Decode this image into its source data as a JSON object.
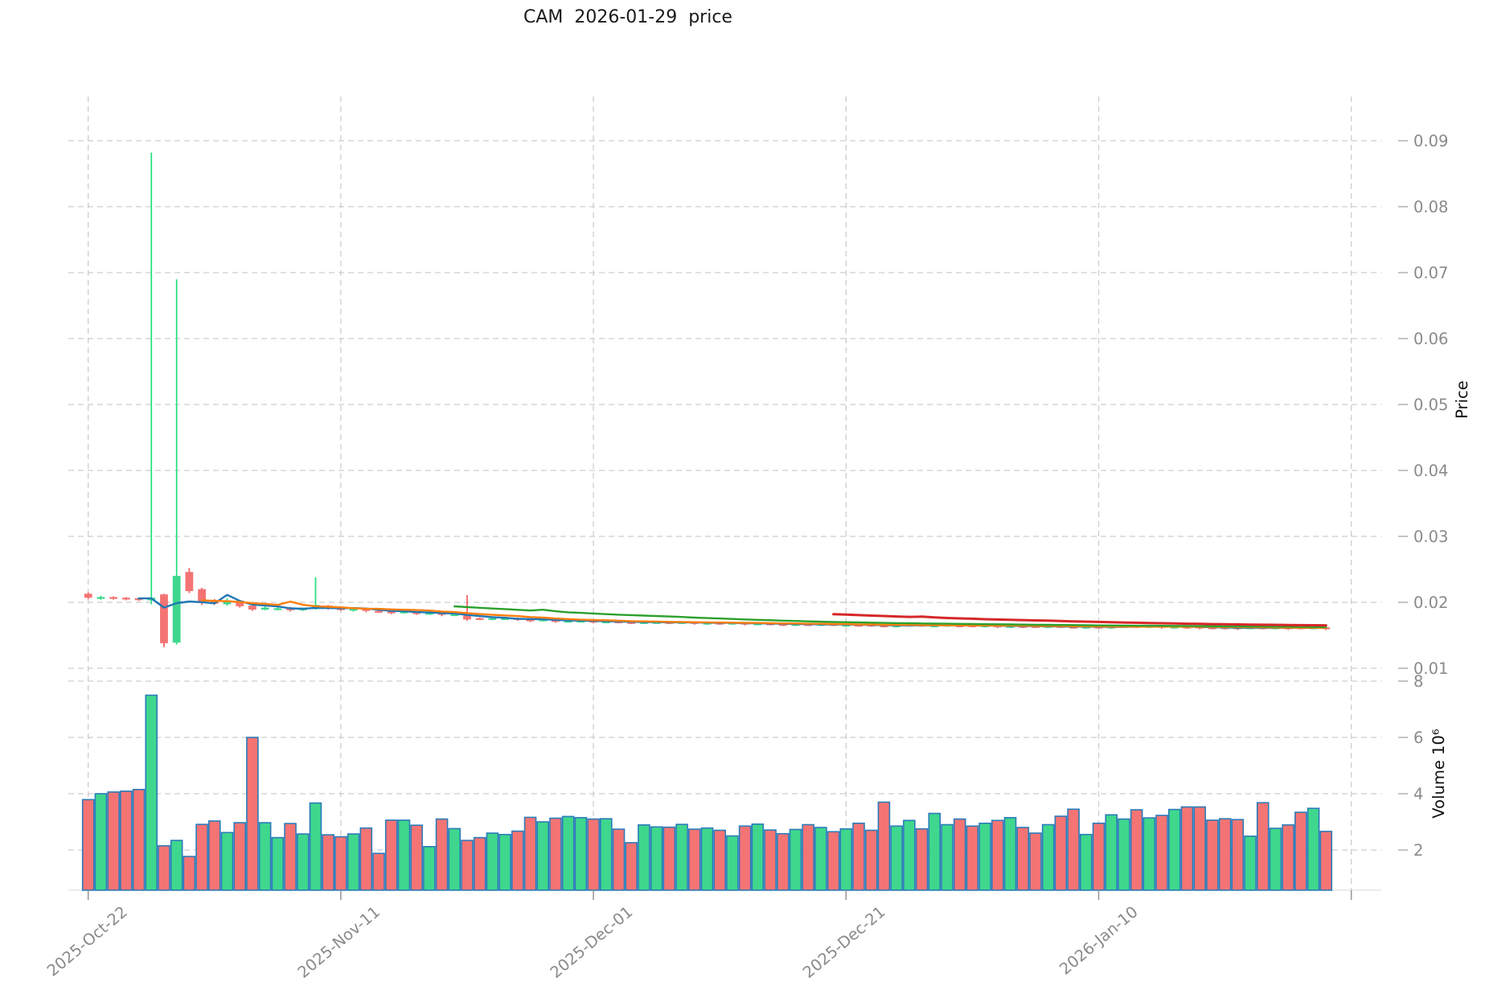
{
  "title": "CAM  2026-01-29  price",
  "colors": {
    "up_body": "#3ed78d",
    "up_wick": "#22df7c",
    "down_body": "#f47474",
    "down_wick": "#f2615f",
    "volume_edge": "#2b7bba",
    "grid": "#cdcdcd",
    "tick_text": "#8a8a8a",
    "axis_title_text": "#111111",
    "ma_colors": [
      "#1f77b4",
      "#ff7f0e",
      "#2ca02c",
      "#d62728"
    ]
  },
  "chart_data": {
    "type": "candlestick",
    "title": "CAM  2026-01-29  price",
    "legend": "none",
    "grid": "dashed",
    "price_axis": {
      "label": "Price",
      "side": "right",
      "ticks": [
        "0.01",
        "0.02",
        "0.03",
        "0.04",
        "0.05",
        "0.06",
        "0.07",
        "0.08",
        "0.09"
      ],
      "range": [
        0.0095,
        0.0965
      ]
    },
    "volume_axis": {
      "label": "Volume  10⁶",
      "side": "right",
      "ticks": [
        "2",
        "4",
        "6",
        "8"
      ],
      "range": [
        0.57,
        8.3
      ]
    },
    "x_axis": {
      "tick_labels": [
        "2025-Oct-22",
        "2025-Nov-11",
        "2025-Dec-01",
        "2025-Dec-21",
        "2026-Jan-10",
        ""
      ],
      "tick_indices": [
        0,
        20,
        40,
        60,
        80,
        100
      ]
    },
    "moving_average_windows": [
      5,
      10,
      30,
      60
    ],
    "candles_format": [
      "open",
      "high",
      "low",
      "close",
      "volume_millions"
    ],
    "candles": [
      [
        0.0213,
        0.0215,
        0.0205,
        0.0207,
        3.79
      ],
      [
        0.0206,
        0.021,
        0.0204,
        0.0208,
        4.0
      ],
      [
        0.0208,
        0.0209,
        0.0204,
        0.0206,
        4.06
      ],
      [
        0.0207,
        0.0208,
        0.0203,
        0.0205,
        4.09
      ],
      [
        0.0206,
        0.0207,
        0.0202,
        0.0204,
        4.15
      ],
      [
        0.0203,
        0.0882,
        0.0197,
        0.0207,
        7.5
      ],
      [
        0.0212,
        0.0213,
        0.0132,
        0.0138,
        2.15
      ],
      [
        0.0139,
        0.069,
        0.0136,
        0.024,
        2.34
      ],
      [
        0.0246,
        0.0252,
        0.0214,
        0.0217,
        1.77
      ],
      [
        0.022,
        0.0222,
        0.0196,
        0.0199,
        2.91
      ],
      [
        0.0202,
        0.0205,
        0.0196,
        0.0198,
        3.03
      ],
      [
        0.0197,
        0.0206,
        0.0195,
        0.0203,
        2.62
      ],
      [
        0.0202,
        0.0203,
        0.0192,
        0.0194,
        2.97
      ],
      [
        0.0195,
        0.0197,
        0.0187,
        0.0189,
        6.0
      ],
      [
        0.0189,
        0.0194,
        0.0188,
        0.0192,
        2.97
      ],
      [
        0.019,
        0.0193,
        0.0188,
        0.0191,
        2.44
      ],
      [
        0.0192,
        0.0193,
        0.0186,
        0.0188,
        2.94
      ],
      [
        0.0188,
        0.0192,
        0.0187,
        0.0191,
        2.57
      ],
      [
        0.019,
        0.0238,
        0.0189,
        0.0196,
        3.67
      ],
      [
        0.0195,
        0.0196,
        0.0189,
        0.0191,
        2.54
      ],
      [
        0.0191,
        0.0192,
        0.0187,
        0.0189,
        2.47
      ],
      [
        0.0188,
        0.0191,
        0.0186,
        0.019,
        2.57
      ],
      [
        0.019,
        0.0191,
        0.0185,
        0.0187,
        2.78
      ],
      [
        0.0187,
        0.0188,
        0.0184,
        0.0186,
        1.88
      ],
      [
        0.0186,
        0.0187,
        0.0182,
        0.0184,
        3.06
      ],
      [
        0.0184,
        0.0187,
        0.0183,
        0.0186,
        3.06
      ],
      [
        0.0185,
        0.0186,
        0.0181,
        0.0183,
        2.88
      ],
      [
        0.0183,
        0.0185,
        0.0181,
        0.0184,
        2.12
      ],
      [
        0.0184,
        0.0185,
        0.0179,
        0.0181,
        3.1
      ],
      [
        0.018,
        0.0183,
        0.0179,
        0.0182,
        2.76
      ],
      [
        0.018,
        0.0211,
        0.0172,
        0.0174,
        2.34
      ],
      [
        0.0176,
        0.0177,
        0.0173,
        0.0175,
        2.44
      ],
      [
        0.0174,
        0.0177,
        0.0173,
        0.0176,
        2.6
      ],
      [
        0.0175,
        0.0178,
        0.0174,
        0.0176,
        2.55
      ],
      [
        0.0176,
        0.0177,
        0.0172,
        0.0174,
        2.67
      ],
      [
        0.0174,
        0.0175,
        0.017,
        0.0172,
        3.16
      ],
      [
        0.0172,
        0.0175,
        0.0171,
        0.0174,
        3.0
      ],
      [
        0.0173,
        0.0174,
        0.0169,
        0.0171,
        3.13
      ],
      [
        0.0171,
        0.0173,
        0.0169,
        0.0172,
        3.19
      ],
      [
        0.0171,
        0.0174,
        0.017,
        0.0172,
        3.15
      ],
      [
        0.0172,
        0.0173,
        0.0168,
        0.017,
        3.1
      ],
      [
        0.017,
        0.0172,
        0.0168,
        0.0171,
        3.11
      ],
      [
        0.0171,
        0.0172,
        0.0168,
        0.017,
        2.74
      ],
      [
        0.017,
        0.0171,
        0.0167,
        0.0169,
        2.26
      ],
      [
        0.0169,
        0.0171,
        0.0167,
        0.017,
        2.89
      ],
      [
        0.0169,
        0.0171,
        0.0168,
        0.017,
        2.82
      ],
      [
        0.017,
        0.0171,
        0.0167,
        0.0169,
        2.81
      ],
      [
        0.0169,
        0.0171,
        0.0167,
        0.017,
        2.91
      ],
      [
        0.017,
        0.0171,
        0.0166,
        0.0168,
        2.74
      ],
      [
        0.0168,
        0.017,
        0.0166,
        0.0169,
        2.78
      ],
      [
        0.0169,
        0.017,
        0.0166,
        0.0168,
        2.7
      ],
      [
        0.0168,
        0.017,
        0.0166,
        0.0169,
        2.5
      ],
      [
        0.0169,
        0.017,
        0.0165,
        0.0167,
        2.85
      ],
      [
        0.0167,
        0.0169,
        0.0165,
        0.0168,
        2.92
      ],
      [
        0.0168,
        0.0169,
        0.0165,
        0.0167,
        2.71
      ],
      [
        0.0167,
        0.0168,
        0.0164,
        0.0166,
        2.58
      ],
      [
        0.0166,
        0.0168,
        0.0164,
        0.0167,
        2.73
      ],
      [
        0.0167,
        0.0168,
        0.0164,
        0.0166,
        2.9
      ],
      [
        0.0166,
        0.0168,
        0.0164,
        0.0167,
        2.8
      ],
      [
        0.0167,
        0.0168,
        0.0164,
        0.0166,
        2.65
      ],
      [
        0.0165,
        0.0167,
        0.0163,
        0.0166,
        2.75
      ],
      [
        0.0166,
        0.0167,
        0.0163,
        0.0165,
        2.95
      ],
      [
        0.0166,
        0.0167,
        0.0163,
        0.0165,
        2.7
      ],
      [
        0.0165,
        0.0166,
        0.0162,
        0.0164,
        3.7
      ],
      [
        0.0164,
        0.0166,
        0.0162,
        0.0165,
        2.85
      ],
      [
        0.0165,
        0.0167,
        0.0163,
        0.0166,
        3.05
      ],
      [
        0.0166,
        0.0167,
        0.0163,
        0.0165,
        2.75
      ],
      [
        0.0164,
        0.0166,
        0.0162,
        0.0165,
        3.3
      ],
      [
        0.0165,
        0.0167,
        0.0163,
        0.0166,
        2.9
      ],
      [
        0.0165,
        0.0166,
        0.0162,
        0.0164,
        3.1
      ],
      [
        0.0165,
        0.0166,
        0.0162,
        0.0164,
        2.85
      ],
      [
        0.0164,
        0.0166,
        0.0162,
        0.0165,
        2.95
      ],
      [
        0.0165,
        0.0165,
        0.0161,
        0.0164,
        3.05
      ],
      [
        0.0163,
        0.0165,
        0.0161,
        0.0164,
        3.15
      ],
      [
        0.0164,
        0.0165,
        0.0161,
        0.0163,
        2.8
      ],
      [
        0.0164,
        0.0165,
        0.0161,
        0.0163,
        2.6
      ],
      [
        0.0163,
        0.0165,
        0.0161,
        0.0164,
        2.9
      ],
      [
        0.0164,
        0.0165,
        0.0161,
        0.0163,
        3.2
      ],
      [
        0.0163,
        0.0164,
        0.016,
        0.0162,
        3.45
      ],
      [
        0.0162,
        0.0164,
        0.016,
        0.0163,
        2.55
      ],
      [
        0.0163,
        0.0164,
        0.016,
        0.0162,
        2.95
      ],
      [
        0.0162,
        0.0164,
        0.016,
        0.0163,
        3.25
      ],
      [
        0.0163,
        0.0165,
        0.0161,
        0.0164,
        3.1
      ],
      [
        0.0164,
        0.0165,
        0.0161,
        0.0163,
        3.43
      ],
      [
        0.0163,
        0.0165,
        0.0161,
        0.0164,
        3.14
      ],
      [
        0.0164,
        0.0164,
        0.016,
        0.0163,
        3.23
      ],
      [
        0.0162,
        0.0164,
        0.016,
        0.0163,
        3.44
      ],
      [
        0.0163,
        0.0164,
        0.016,
        0.0162,
        3.53
      ],
      [
        0.0163,
        0.0163,
        0.0159,
        0.0162,
        3.53
      ],
      [
        0.0162,
        0.0163,
        0.0159,
        0.0161,
        3.06
      ],
      [
        0.0162,
        0.0163,
        0.0159,
        0.0161,
        3.11
      ],
      [
        0.0162,
        0.0162,
        0.0158,
        0.0161,
        3.08
      ],
      [
        0.0161,
        0.0163,
        0.0159,
        0.0162,
        2.49
      ],
      [
        0.0162,
        0.0163,
        0.0159,
        0.0161,
        3.68
      ],
      [
        0.0161,
        0.0163,
        0.0159,
        0.0162,
        2.77
      ],
      [
        0.0162,
        0.0162,
        0.0158,
        0.0161,
        2.89
      ],
      [
        0.0162,
        0.0163,
        0.0159,
        0.0161,
        3.34
      ],
      [
        0.0161,
        0.0163,
        0.0159,
        0.0162,
        3.48
      ],
      [
        0.0162,
        0.0162,
        0.0158,
        0.0161,
        2.66
      ]
    ]
  }
}
